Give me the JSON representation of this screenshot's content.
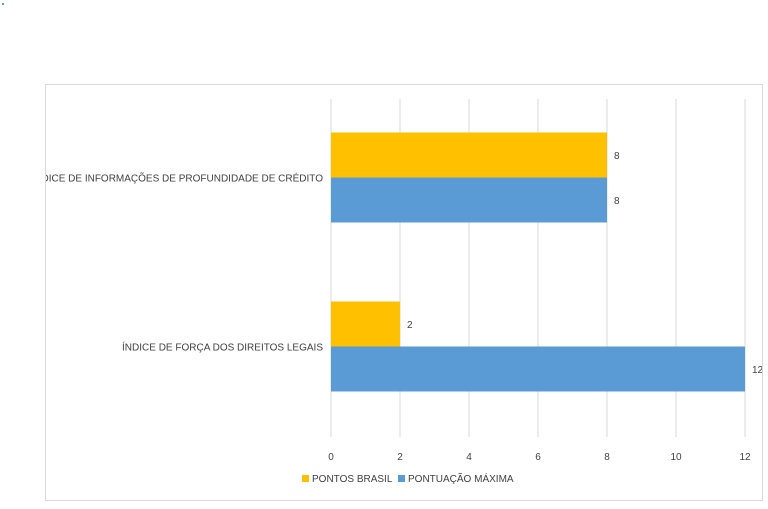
{
  "chart_data": {
    "type": "bar",
    "orientation": "horizontal",
    "categories": [
      "ÍNDICE DE INFORMAÇÕES DE PROFUNDIDADE DE CRÉDITO",
      "ÍNDICE DE FORÇA DOS DIREITOS LEGAIS"
    ],
    "series": [
      {
        "name": "PONTOS BRASIL",
        "values": [
          8,
          2
        ],
        "color": "#ffc000"
      },
      {
        "name": "PONTUAÇÃO MÁXIMA",
        "values": [
          8,
          12
        ],
        "color": "#5b9bd5"
      }
    ],
    "xlim": [
      0,
      12
    ],
    "xticks": [
      0,
      2,
      4,
      6,
      8,
      10,
      12
    ],
    "grid": true,
    "data_labels": true,
    "legend": "bottom-center"
  }
}
